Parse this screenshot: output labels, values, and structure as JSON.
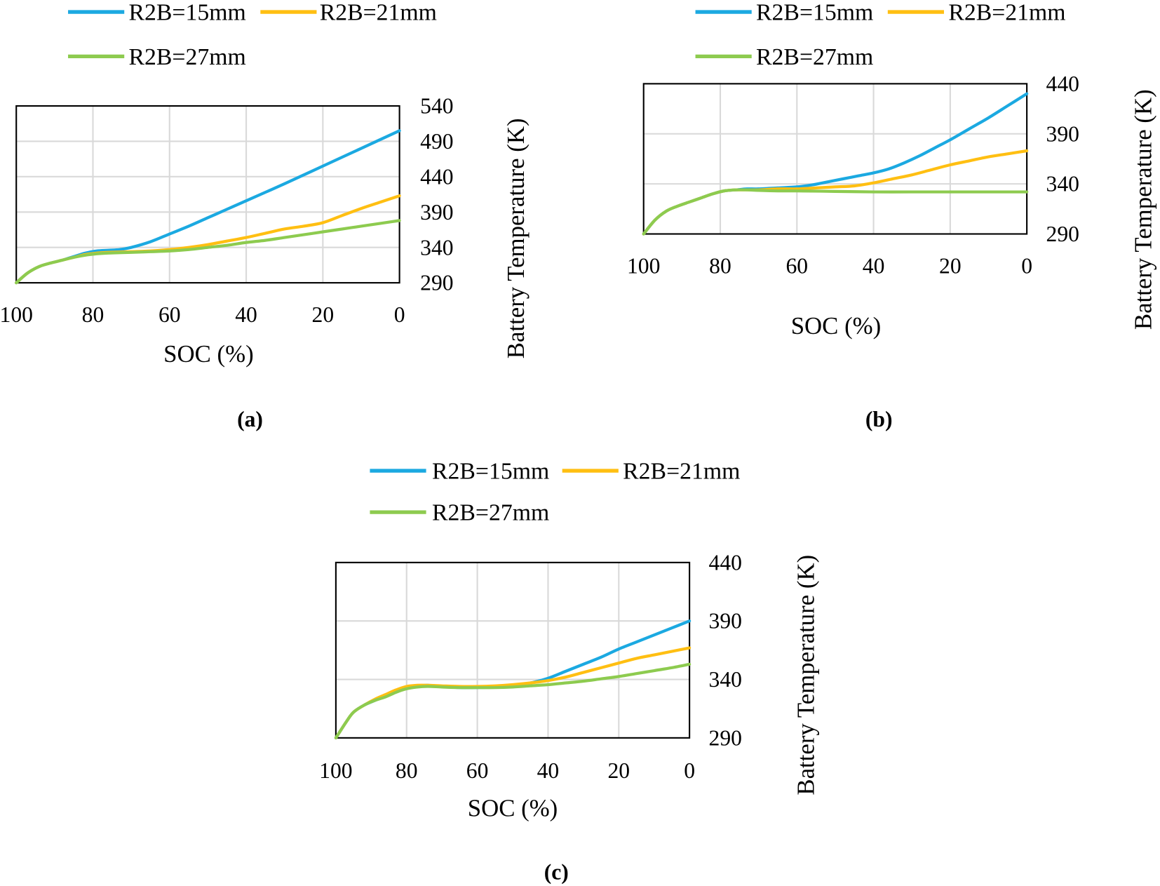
{
  "colors": {
    "grid": "#D9D9D9",
    "axis": "#000000"
  },
  "chart_data": [
    {
      "panel": "(a)",
      "type": "line",
      "xlabel": "SOC (%)",
      "ylabel": "Battery Temperature (K)",
      "xlim": [
        100,
        0
      ],
      "ylim": [
        290,
        540
      ],
      "xticks": [
        100,
        80,
        60,
        40,
        20,
        0
      ],
      "yticks": [
        540,
        490,
        440,
        390,
        340,
        290
      ],
      "grid": true,
      "series": [
        {
          "name": "R2B=15mm",
          "color": "#1BA9E1",
          "x": [
            100,
            97,
            94,
            91,
            88,
            85,
            82,
            79,
            76,
            73,
            70,
            65,
            60,
            55,
            50,
            45,
            40,
            30,
            20,
            10,
            0
          ],
          "y": [
            290,
            304,
            313,
            318,
            322,
            327,
            332,
            335,
            336,
            337,
            340,
            348,
            359,
            370,
            382,
            394,
            406,
            430,
            455,
            480,
            505
          ]
        },
        {
          "name": "R2B=21mm",
          "color": "#FFBF12",
          "x": [
            100,
            97,
            94,
            91,
            88,
            85,
            82,
            79,
            76,
            70,
            65,
            60,
            55,
            50,
            45,
            40,
            35,
            30,
            25,
            20,
            15,
            10,
            5,
            0
          ],
          "y": [
            290,
            304,
            313,
            318,
            322,
            326,
            330,
            332,
            333,
            334,
            335,
            337,
            340,
            344,
            349,
            354,
            360,
            366,
            370,
            375,
            385,
            395,
            404,
            413
          ]
        },
        {
          "name": "R2B=27mm",
          "color": "#8DCB4F",
          "x": [
            100,
            97,
            94,
            91,
            88,
            85,
            82,
            79,
            76,
            70,
            65,
            60,
            55,
            50,
            45,
            40,
            35,
            30,
            25,
            20,
            15,
            10,
            5,
            0
          ],
          "y": [
            290,
            304,
            313,
            318,
            322,
            326,
            329,
            331,
            332,
            333,
            334,
            335,
            337,
            340,
            343,
            347,
            350,
            354,
            358,
            362,
            366,
            370,
            374,
            378
          ]
        }
      ]
    },
    {
      "panel": "(b)",
      "type": "line",
      "xlabel": "SOC (%)",
      "ylabel": "Battery Temperature (K)",
      "xlim": [
        100,
        0
      ],
      "ylim": [
        290,
        440
      ],
      "xticks": [
        100,
        80,
        60,
        40,
        20,
        0
      ],
      "yticks": [
        440,
        390,
        340,
        290
      ],
      "grid": true,
      "series": [
        {
          "name": "R2B=15mm",
          "color": "#1BA9E1",
          "x": [
            100,
            97,
            94,
            91,
            88,
            85,
            82,
            79,
            76,
            73,
            70,
            65,
            60,
            56,
            52,
            48,
            44,
            40,
            36,
            32,
            28,
            24,
            20,
            15,
            10,
            5,
            0
          ],
          "y": [
            290,
            304,
            313,
            318,
            322,
            326,
            330,
            333,
            334,
            335,
            335,
            336,
            337,
            339,
            342,
            345,
            348,
            351,
            355,
            361,
            368,
            376,
            384,
            395,
            406,
            418,
            430
          ]
        },
        {
          "name": "R2B=21mm",
          "color": "#FFBF12",
          "x": [
            100,
            97,
            94,
            91,
            88,
            85,
            82,
            79,
            76,
            73,
            70,
            65,
            60,
            55,
            50,
            45,
            40,
            35,
            30,
            25,
            20,
            15,
            10,
            5,
            0
          ],
          "y": [
            290,
            304,
            313,
            318,
            322,
            326,
            330,
            333,
            334,
            334,
            334,
            335,
            335,
            336,
            337,
            338,
            341,
            345,
            349,
            354,
            359,
            363,
            367,
            370,
            373
          ]
        },
        {
          "name": "R2B=27mm",
          "color": "#8DCB4F",
          "x": [
            100,
            97,
            94,
            91,
            88,
            85,
            82,
            79,
            76,
            73,
            70,
            65,
            60,
            50,
            40,
            30,
            20,
            10,
            0
          ],
          "y": [
            290,
            304,
            313,
            318,
            322,
            326,
            330,
            333,
            334,
            334,
            333.5,
            333,
            333,
            332.5,
            332,
            332,
            332,
            332,
            332
          ]
        }
      ]
    },
    {
      "panel": "(c)",
      "type": "line",
      "xlabel": "SOC (%)",
      "ylabel": "Battery Temperature (K)",
      "xlim": [
        100,
        0
      ],
      "ylim": [
        290,
        440
      ],
      "xticks": [
        100,
        80,
        60,
        40,
        20,
        0
      ],
      "yticks": [
        440,
        390,
        340,
        290
      ],
      "grid": true,
      "series": [
        {
          "name": "R2B=15mm",
          "color": "#1BA9E1",
          "x": [
            100,
            97,
            95,
            92,
            89,
            86,
            83,
            80,
            77,
            74,
            70,
            65,
            60,
            55,
            50,
            45,
            40,
            35,
            30,
            25,
            20,
            15,
            10,
            5,
            0
          ],
          "y": [
            290,
            304,
            312,
            318,
            322,
            326,
            330,
            333,
            334.5,
            335,
            334,
            333,
            333,
            333.5,
            334.5,
            337,
            341,
            347,
            353,
            359,
            366,
            372,
            378,
            384,
            390
          ]
        },
        {
          "name": "R2B=21mm",
          "color": "#FFBF12",
          "x": [
            100,
            97,
            95,
            92,
            89,
            86,
            83,
            80,
            77,
            74,
            70,
            65,
            60,
            55,
            50,
            45,
            40,
            35,
            30,
            25,
            20,
            15,
            10,
            5,
            0
          ],
          "y": [
            290,
            304,
            312,
            318,
            323,
            327,
            331,
            334,
            335,
            335,
            334.5,
            334,
            334,
            334.5,
            335.5,
            337,
            339,
            342,
            346,
            350,
            354,
            358,
            361,
            364,
            367
          ]
        },
        {
          "name": "R2B=27mm",
          "color": "#8DCB4F",
          "x": [
            100,
            97,
            95,
            92,
            89,
            86,
            83,
            80,
            77,
            74,
            70,
            65,
            60,
            55,
            50,
            45,
            40,
            35,
            30,
            25,
            20,
            15,
            10,
            5,
            0
          ],
          "y": [
            290,
            304,
            312,
            318,
            322,
            325,
            329,
            332,
            333.5,
            334,
            333.5,
            333,
            333,
            333,
            333.5,
            334.5,
            335.5,
            337,
            338.5,
            340.5,
            342.5,
            345,
            347.5,
            350,
            353
          ]
        }
      ]
    }
  ]
}
